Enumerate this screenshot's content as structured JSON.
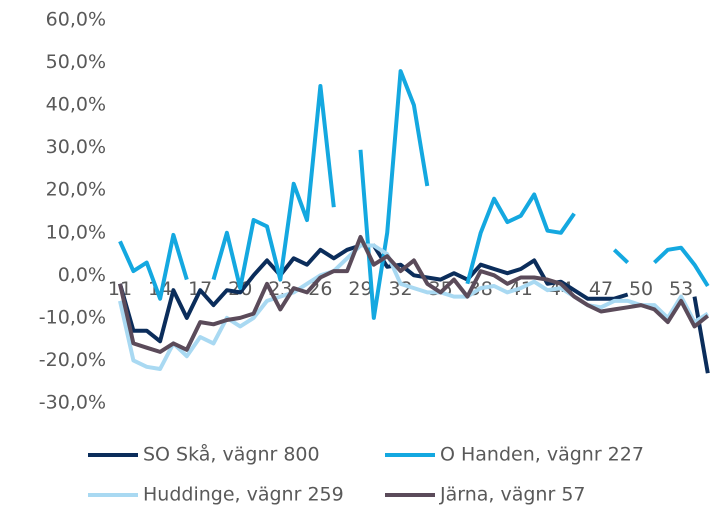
{
  "chart_data": {
    "type": "line",
    "categories": [
      "11",
      null,
      null,
      "14",
      null,
      null,
      "17",
      null,
      null,
      "20",
      null,
      null,
      "23",
      null,
      null,
      "26",
      null,
      null,
      "29",
      null,
      null,
      "32",
      null,
      null,
      "35",
      null,
      null,
      "38",
      null,
      null,
      "41",
      null,
      null,
      "44",
      null,
      null,
      "47",
      null,
      null,
      "50",
      null,
      null,
      "53",
      null,
      null
    ],
    "series": [
      {
        "name": "SO Skå, vägnr 800",
        "color": "#0b2d5b",
        "values": [
          -2,
          -13,
          -13,
          -15.5,
          -3.5,
          -10,
          -3.5,
          -7,
          -3.5,
          -4,
          0,
          3.5,
          0,
          4,
          2.5,
          6,
          4,
          6,
          7,
          7,
          2,
          2.5,
          0,
          -0.5,
          -1,
          0.5,
          -1,
          2.5,
          1.5,
          0.5,
          1.5,
          3.5,
          -2,
          -1.5,
          -3.5,
          -5.5,
          -5.5,
          -5.5,
          -4.5,
          null,
          null,
          null,
          null,
          -5,
          -23
        ]
      },
      {
        "name": "O Handen, vägnr 227",
        "color": "#14a8e0",
        "values": [
          8,
          1,
          3,
          -5.5,
          9.5,
          -1,
          null,
          -1,
          10,
          -3,
          13,
          11.5,
          -1,
          21.5,
          13,
          44.5,
          16,
          null,
          29.5,
          -10,
          10,
          48,
          40,
          21,
          null,
          null,
          -2,
          10,
          18,
          12.5,
          14,
          19,
          10.5,
          10,
          14.5,
          null,
          null,
          6,
          3,
          null,
          3,
          6,
          6.5,
          2.5,
          -2.5
        ]
      },
      {
        "name": "Huddinge, vägnr 259",
        "color": "#a9d9f2",
        "values": [
          -6,
          -20,
          -21.5,
          -22,
          -16,
          -19,
          -14.5,
          -16,
          -10,
          -12,
          -10,
          -6,
          -5,
          -4,
          -2,
          0,
          1,
          4,
          7,
          7,
          5,
          -2,
          -3,
          -4,
          -4,
          -5,
          -5,
          -3,
          -2.5,
          -4,
          -3,
          -1.5,
          -3.5,
          -3,
          -5,
          -7,
          -7.5,
          -6,
          -6,
          -7,
          -7,
          -10,
          -5,
          -11,
          -9
        ]
      },
      {
        "name": "Järna, vägnr 57",
        "color": "#5b4b5a",
        "values": [
          -2,
          -16,
          -17,
          -18,
          -16,
          -17.5,
          -11,
          -11.5,
          -10.5,
          -10,
          -9,
          -2,
          -8,
          -3,
          -4,
          -0.5,
          1,
          1,
          9,
          2.5,
          4.5,
          1,
          3.5,
          -2,
          -4,
          -1,
          -5,
          1,
          0,
          -2,
          -0.5,
          -0.5,
          -1,
          -2,
          -5,
          -7,
          -8.5,
          -8,
          -7.5,
          -7,
          -8,
          -11,
          -6,
          -12,
          -9.5
        ]
      }
    ],
    "ylim": [
      -30,
      60
    ],
    "yticks": [
      {
        "value": -30,
        "label": "-30,0%"
      },
      {
        "value": -20,
        "label": "-20,0%"
      },
      {
        "value": -10,
        "label": "-10,0%"
      },
      {
        "value": 0,
        "label": "0,0%"
      },
      {
        "value": 10,
        "label": "10,0%"
      },
      {
        "value": 20,
        "label": "20,0%"
      },
      {
        "value": 30,
        "label": "30,0%"
      },
      {
        "value": 40,
        "label": "40,0%"
      },
      {
        "value": 50,
        "label": "50,0%"
      },
      {
        "value": 60,
        "label": "60,0%"
      }
    ],
    "legend": "bottom"
  }
}
